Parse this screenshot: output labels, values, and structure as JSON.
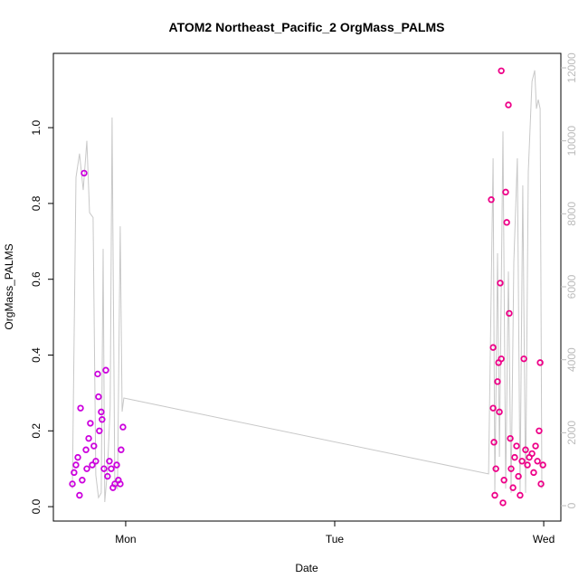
{
  "chart_data": {
    "type": "scatter",
    "title": "ATOM2 Northeast_Pacific_2 OrgMass_PALMS",
    "x_label": "Date",
    "y_label": "OrgMass_PALMS",
    "xlim": [
      0.654,
      3.082
    ],
    "xticks": [
      {
        "value": 1,
        "label": "Mon"
      },
      {
        "value": 2,
        "label": "Tue"
      },
      {
        "value": 3,
        "label": "Wed"
      }
    ],
    "ylim": [
      -0.038,
      1.196
    ],
    "yticks": [
      {
        "value": 0,
        "label": "0.0"
      },
      {
        "value": 0.2,
        "label": "0.2"
      },
      {
        "value": 0.4,
        "label": "0.4"
      },
      {
        "value": 0.6,
        "label": "0.6"
      },
      {
        "value": 0.8,
        "label": "0.8"
      },
      {
        "value": 1,
        "label": "1.0"
      }
    ],
    "y2lim": [
      -421,
      12397
    ],
    "y2ticks": [
      0,
      2000,
      4000,
      6000,
      8000,
      10000,
      12000
    ],
    "y2_color": "#bbbbbb",
    "series": [
      {
        "type": "line",
        "axis": "y2",
        "color": "#c8c8c8",
        "x": [
          0.745,
          0.762,
          0.779,
          0.797,
          0.814,
          0.827,
          0.844,
          0.857,
          0.87,
          0.883,
          0.892,
          0.9,
          0.913,
          0.926,
          0.935,
          0.948,
          0.961,
          0.974,
          0.983,
          0.991,
          2.736,
          2.758,
          2.766,
          2.779,
          2.788,
          2.805,
          2.818,
          2.831,
          2.844,
          2.857,
          2.874,
          2.887,
          2.9,
          2.913,
          2.926,
          2.944,
          2.957,
          2.965,
          2.974,
          2.983,
          2.991
        ],
        "values": [
          470,
          9000,
          9650,
          8650,
          10000,
          8030,
          7900,
          840,
          220,
          350,
          7040,
          100,
          970,
          2700,
          10640,
          600,
          470,
          7660,
          2580,
          2950,
          870,
          9520,
          350,
          6920,
          1340,
          10260,
          470,
          6420,
          350,
          6670,
          9520,
          350,
          8780,
          350,
          9150,
          11630,
          11930,
          10880,
          11130,
          10880,
          470
        ]
      },
      {
        "type": "scatter",
        "color": "#cc00dd",
        "x": [
          0.745,
          0.753,
          0.762,
          0.771,
          0.779,
          0.784,
          0.792,
          0.801,
          0.81,
          0.814,
          0.823,
          0.831,
          0.84,
          0.848,
          0.857,
          0.866,
          0.87,
          0.874,
          0.883,
          0.887,
          0.896,
          0.905,
          0.913,
          0.922,
          0.931,
          0.939,
          0.948,
          0.957,
          0.965,
          0.974,
          0.978,
          0.987
        ],
        "values": [
          0.06,
          0.09,
          0.11,
          0.13,
          0.03,
          0.26,
          0.07,
          0.88,
          0.15,
          0.1,
          0.18,
          0.22,
          0.11,
          0.16,
          0.12,
          0.35,
          0.29,
          0.2,
          0.25,
          0.23,
          0.1,
          0.36,
          0.08,
          0.12,
          0.1,
          0.05,
          0.06,
          0.11,
          0.07,
          0.06,
          0.15,
          0.21
        ]
      },
      {
        "type": "scatter",
        "color": "#ee0088",
        "x": [
          2.749,
          2.758,
          2.758,
          2.762,
          2.766,
          2.771,
          2.779,
          2.784,
          2.788,
          2.792,
          2.797,
          2.797,
          2.805,
          2.81,
          2.818,
          2.823,
          2.831,
          2.835,
          2.84,
          2.844,
          2.853,
          2.861,
          2.87,
          2.879,
          2.887,
          2.896,
          2.905,
          2.913,
          2.922,
          2.931,
          2.944,
          2.952,
          2.961,
          2.97,
          2.978,
          2.983,
          2.987,
          2.996
        ],
        "values": [
          0.81,
          0.42,
          0.26,
          0.17,
          0.03,
          0.1,
          0.33,
          0.38,
          0.25,
          0.59,
          0.39,
          1.15,
          0.01,
          0.07,
          0.83,
          0.75,
          1.06,
          0.51,
          0.18,
          0.1,
          0.05,
          0.13,
          0.16,
          0.08,
          0.03,
          0.12,
          0.39,
          0.15,
          0.11,
          0.13,
          0.14,
          0.09,
          0.16,
          0.12,
          0.2,
          0.38,
          0.06,
          0.11
        ]
      }
    ]
  }
}
